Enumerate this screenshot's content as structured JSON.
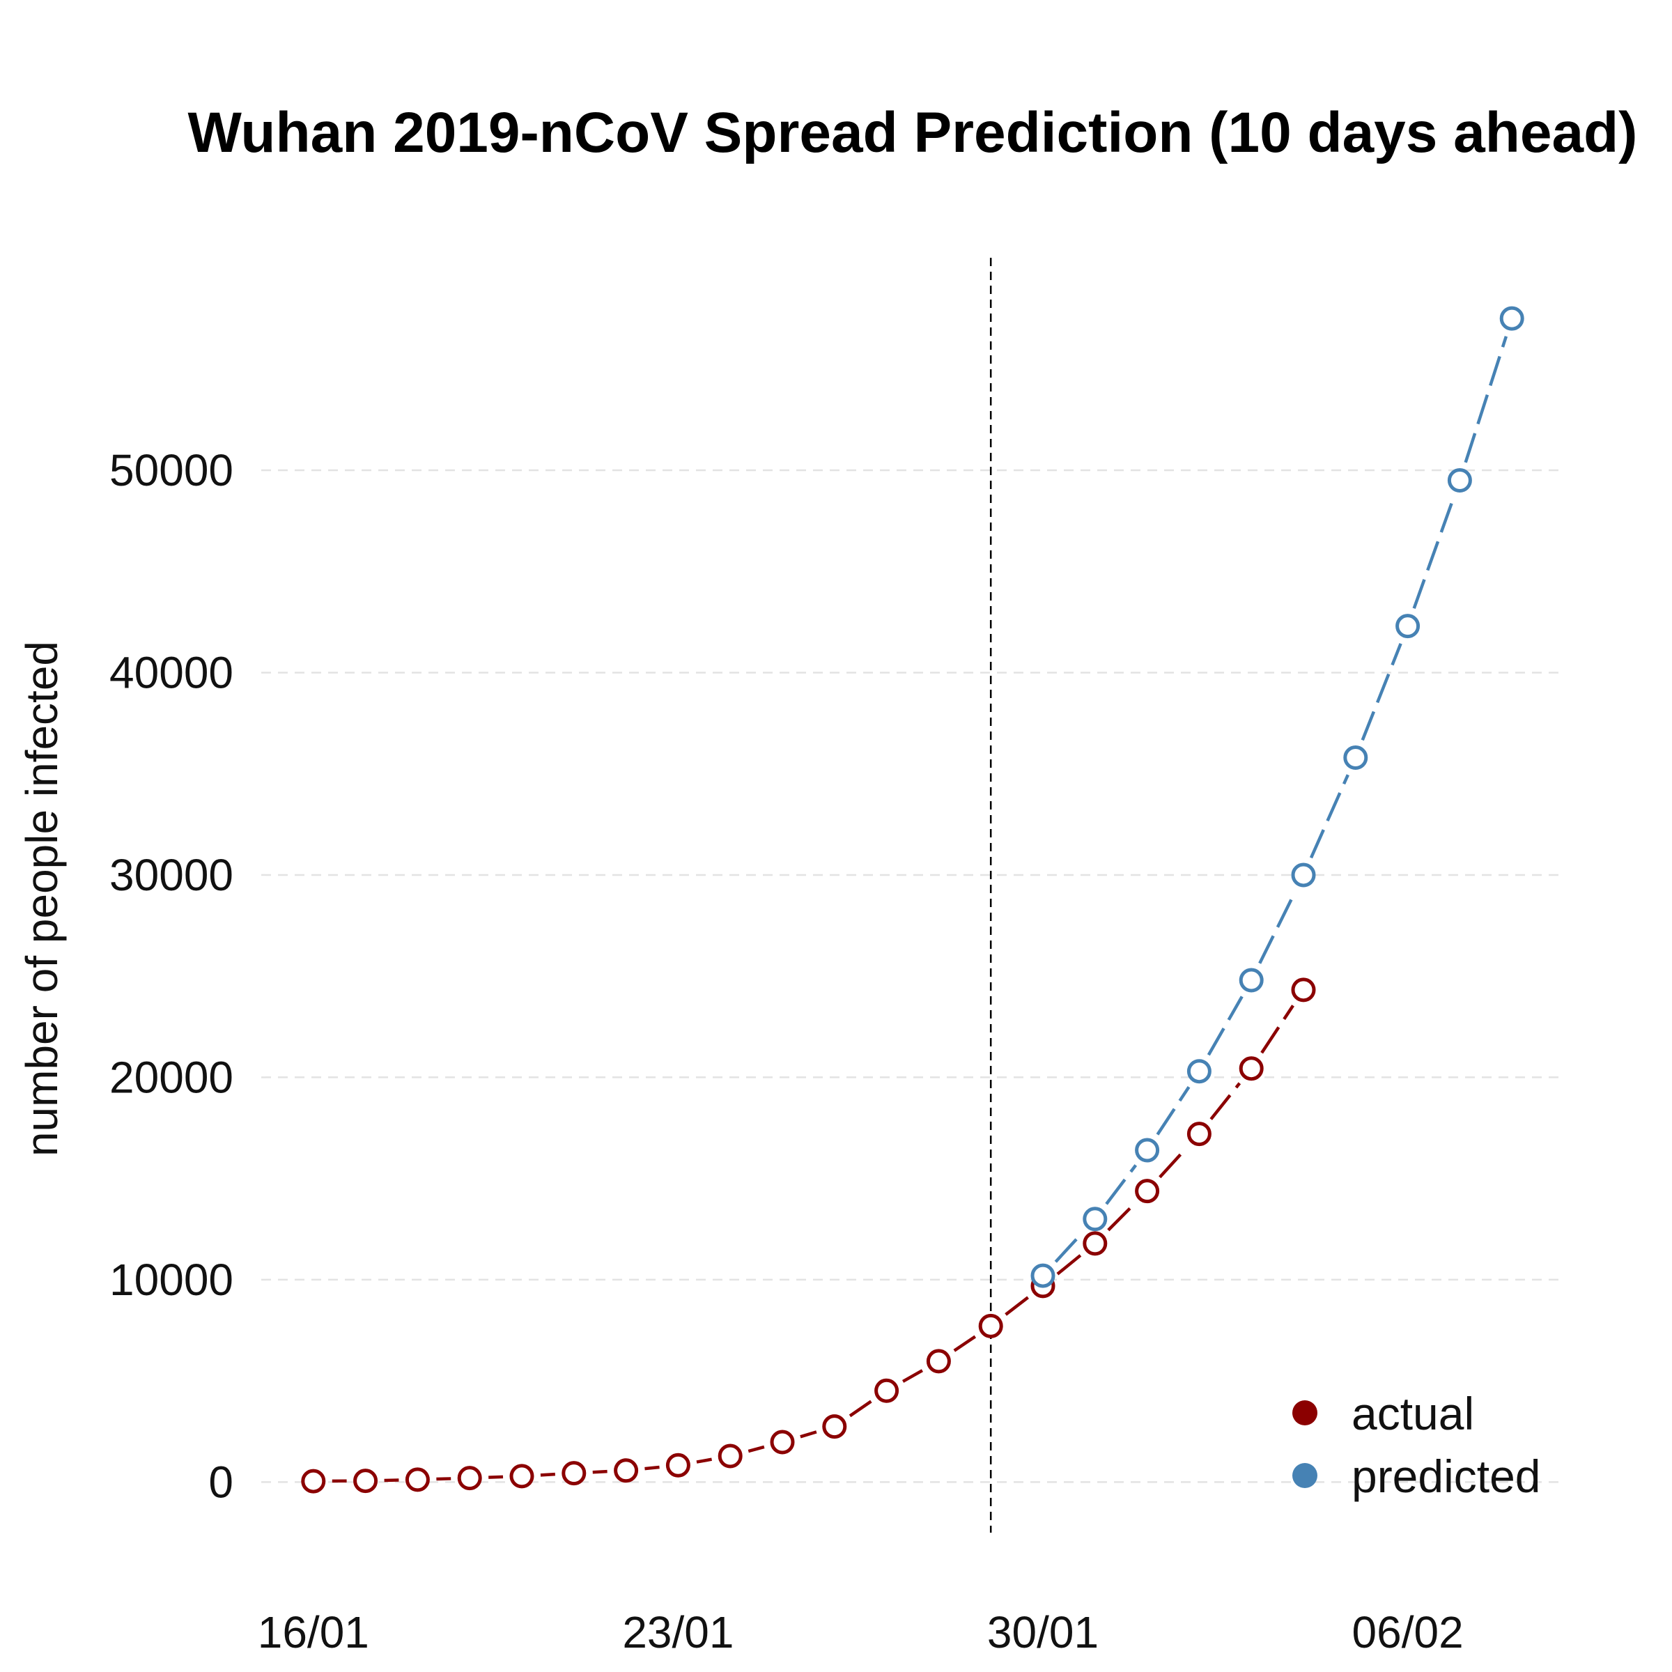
{
  "chart_data": {
    "type": "line",
    "title": "Wuhan 2019-nCoV Spread Prediction (10 days ahead)",
    "xlabel": "",
    "ylabel": "number of people infected",
    "x_tick_labels": [
      "16/01",
      "23/01",
      "30/01",
      "06/02"
    ],
    "x_tick_dates": [
      "2020-01-16",
      "2020-01-23",
      "2020-01-30",
      "2020-02-06"
    ],
    "y_ticks": [
      0,
      10000,
      20000,
      30000,
      40000,
      50000
    ],
    "ylim": [
      -2500,
      60500
    ],
    "xlim": [
      "2020-01-15",
      "2020-02-09"
    ],
    "grid": {
      "horizontal": true,
      "vertical": false,
      "style": "dashed"
    },
    "reference_line": {
      "date": "2020-01-29",
      "style": "dashed",
      "color": "#000000"
    },
    "legend_position": "bottom-right",
    "series": [
      {
        "name": "actual",
        "color": "#8B0000",
        "line_style": "dashed",
        "x": [
          "2020-01-16",
          "2020-01-17",
          "2020-01-18",
          "2020-01-19",
          "2020-01-20",
          "2020-01-21",
          "2020-01-22",
          "2020-01-23",
          "2020-01-24",
          "2020-01-25",
          "2020-01-26",
          "2020-01-27",
          "2020-01-28",
          "2020-01-29",
          "2020-01-30",
          "2020-01-31",
          "2020-02-01",
          "2020-02-02",
          "2020-02-03",
          "2020-02-04"
        ],
        "values": [
          45,
          62,
          121,
          198,
          291,
          440,
          571,
          830,
          1287,
          1975,
          2744,
          4515,
          5974,
          7711,
          9692,
          11791,
          14380,
          17205,
          20438,
          24324
        ]
      },
      {
        "name": "predicted",
        "color": "#4682B4",
        "line_style": "dashed",
        "x": [
          "2020-01-30",
          "2020-01-31",
          "2020-02-01",
          "2020-02-02",
          "2020-02-03",
          "2020-02-04",
          "2020-02-05",
          "2020-02-06",
          "2020-02-07",
          "2020-02-08"
        ],
        "values": [
          10200,
          13000,
          16400,
          20300,
          24800,
          30000,
          35800,
          42300,
          49500,
          57500
        ]
      }
    ]
  }
}
